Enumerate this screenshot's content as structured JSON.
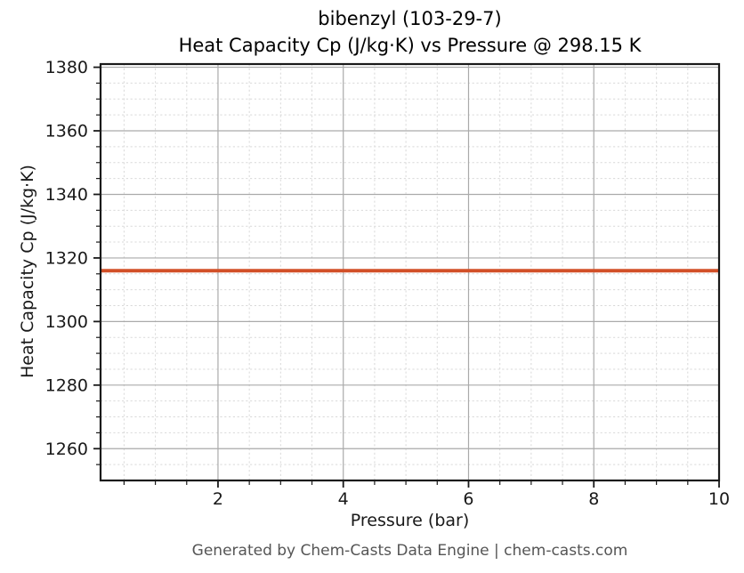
{
  "chart_data": {
    "type": "line",
    "title_line1": "bibenzyl (103-29-7)",
    "title_line2": "Heat Capacity Cp (J/kg·K) vs Pressure @ 298.15 K",
    "xlabel": "Pressure (bar)",
    "ylabel": "Heat Capacity Cp (J/kg·K)",
    "series": [
      {
        "name": "Cp",
        "x": [
          0.125,
          10
        ],
        "y": [
          1316,
          1316
        ],
        "color": "#d25028",
        "line_width": 4
      }
    ],
    "constant_value_j_per_kg_k": 1316,
    "temperature_k": "298.15",
    "xlim": [
      0.125,
      10
    ],
    "ylim": [
      1250,
      1381
    ],
    "x_major_ticks": [
      2,
      4,
      6,
      8,
      10
    ],
    "y_major_ticks": [
      1260,
      1280,
      1300,
      1320,
      1340,
      1360,
      1380
    ],
    "x_minor_step": 0.5,
    "y_minor_step": 5,
    "grid": true,
    "legend": "none",
    "colors": {
      "major_grid": "#aaaaaa",
      "minor_grid": "#d9d9d9",
      "spine": "#1a1a1a",
      "tick_label": "#191919",
      "background": "#ffffff"
    }
  },
  "footer": {
    "text": "Generated by Chem-Casts Data Engine | chem-casts.com"
  }
}
